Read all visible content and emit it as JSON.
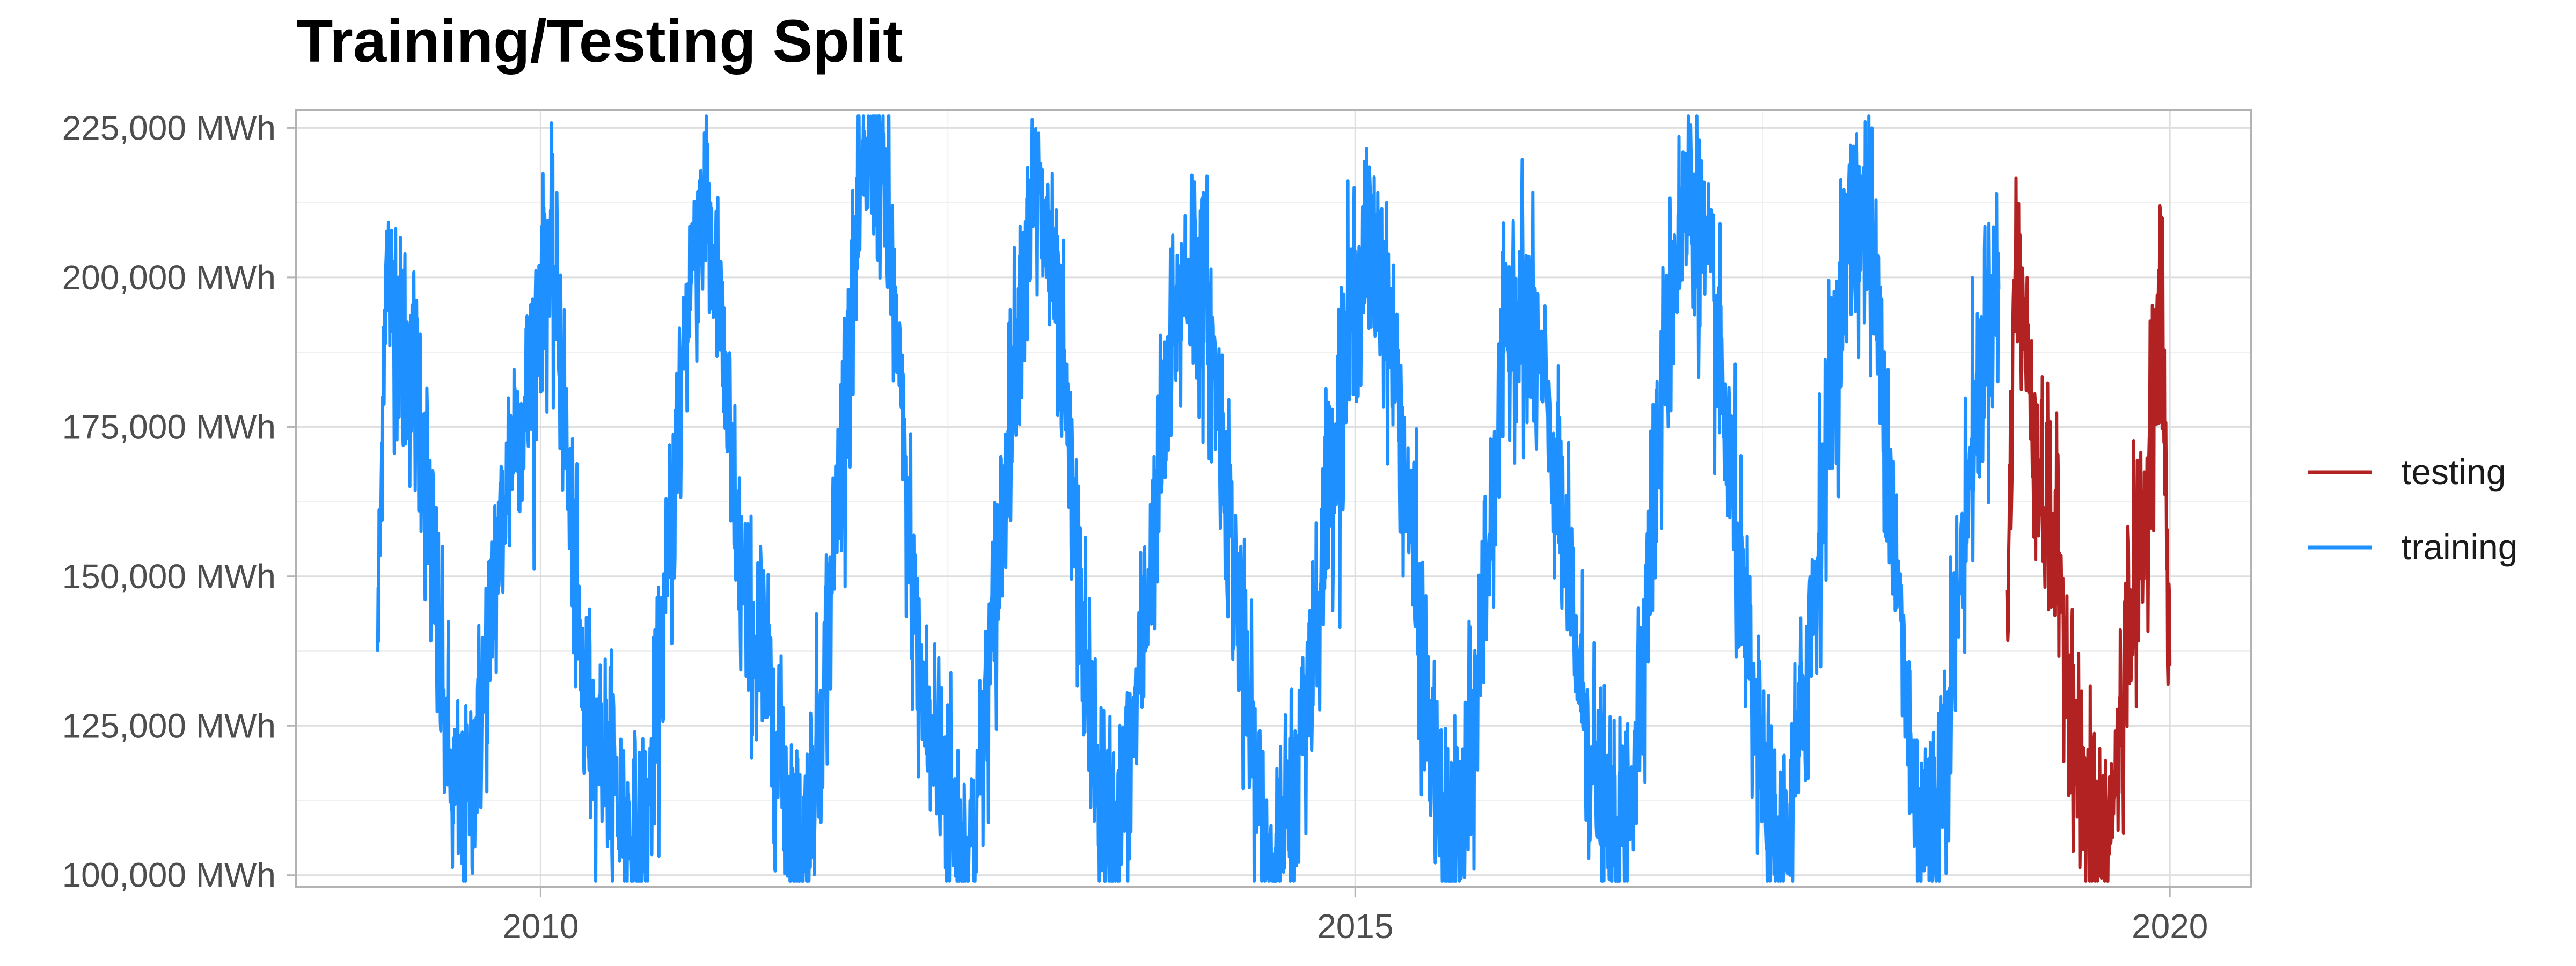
{
  "chart_data": {
    "type": "line",
    "title": "Training/Testing Split",
    "xlabel": "",
    "ylabel": "",
    "x_ticks": [
      "2010",
      "2015",
      "2020"
    ],
    "x_tick_values": [
      2010,
      2015,
      2020
    ],
    "y_ticks": [
      "100,000 MWh",
      "125,000 MWh",
      "150,000 MWh",
      "175,000 MWh",
      "200,000 MWh",
      "225,000 MWh"
    ],
    "y_tick_values": [
      100000,
      125000,
      150000,
      175000,
      200000,
      225000
    ],
    "xlim": [
      2008.5,
      2020.5
    ],
    "ylim": [
      98000,
      228000
    ],
    "grid": true,
    "legend_position": "right",
    "x_unit": "decimal year",
    "y_unit": "MWh",
    "series": [
      {
        "name": "training",
        "color": "#1E90FF",
        "x_range": [
          2009.0,
          2019.0
        ],
        "summary_points": [
          {
            "x": 2009.0,
            "y": 143000
          },
          {
            "x": 2009.05,
            "y": 200000
          },
          {
            "x": 2009.2,
            "y": 185000
          },
          {
            "x": 2009.5,
            "y": 110000
          },
          {
            "x": 2009.9,
            "y": 178000
          },
          {
            "x": 2010.05,
            "y": 202000
          },
          {
            "x": 2010.3,
            "y": 125000
          },
          {
            "x": 2010.6,
            "y": 105000
          },
          {
            "x": 2011.0,
            "y": 211000
          },
          {
            "x": 2011.3,
            "y": 140000
          },
          {
            "x": 2011.6,
            "y": 106000
          },
          {
            "x": 2012.05,
            "y": 222000
          },
          {
            "x": 2012.4,
            "y": 123000
          },
          {
            "x": 2012.6,
            "y": 104000
          },
          {
            "x": 2013.05,
            "y": 211000
          },
          {
            "x": 2013.5,
            "y": 106000
          },
          {
            "x": 2014.0,
            "y": 202000
          },
          {
            "x": 2014.5,
            "y": 104000
          },
          {
            "x": 2015.1,
            "y": 204000
          },
          {
            "x": 2015.6,
            "y": 104000
          },
          {
            "x": 2016.0,
            "y": 196000
          },
          {
            "x": 2016.6,
            "y": 105000
          },
          {
            "x": 2017.05,
            "y": 213000
          },
          {
            "x": 2017.6,
            "y": 106000
          },
          {
            "x": 2018.1,
            "y": 211000
          },
          {
            "x": 2018.5,
            "y": 108000
          },
          {
            "x": 2018.95,
            "y": 198000
          }
        ]
      },
      {
        "name": "testing",
        "color": "#B22222",
        "x_range": [
          2019.0,
          2020.0
        ],
        "summary_points": [
          {
            "x": 2019.0,
            "y": 145000
          },
          {
            "x": 2019.05,
            "y": 199000
          },
          {
            "x": 2019.25,
            "y": 160000
          },
          {
            "x": 2019.5,
            "y": 110000
          },
          {
            "x": 2019.6,
            "y": 105000
          },
          {
            "x": 2019.8,
            "y": 150000
          },
          {
            "x": 2019.95,
            "y": 194000
          },
          {
            "x": 2020.0,
            "y": 135000
          }
        ]
      }
    ]
  }
}
